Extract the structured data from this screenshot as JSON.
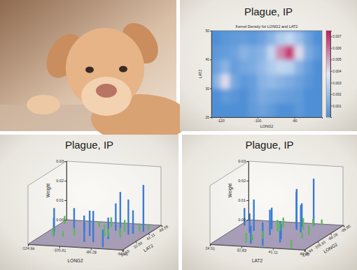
{
  "chart_data": [
    {
      "type": "heatmap",
      "title": "Plague, IP",
      "subtitle": "Kernel Density for LONG2 and LAT2",
      "xlabel": "LONG2",
      "ylabel": "LAT2",
      "x": [
        -122.5,
        -117.5,
        -112.5,
        -107.5,
        -102.5,
        -97.5,
        -92.5,
        -87.5,
        -82.5,
        -77.5,
        -72.5,
        -67.5
      ],
      "y": [
        22.5,
        27.5,
        32.5,
        37.5,
        42.5,
        47.5
      ],
      "cells": [
        [
          0,
          0,
          0,
          0,
          0.0005,
          0.0008,
          0.0005,
          0,
          0,
          0.0004,
          0,
          0
        ],
        [
          0,
          0.0005,
          0.0003,
          0,
          0.0006,
          0.0012,
          0.001,
          0.0008,
          0.0006,
          0.0005,
          0,
          0
        ],
        [
          0.0015,
          0.004,
          0.001,
          0.0004,
          0.0006,
          0.0015,
          0.0018,
          0.0015,
          0.0012,
          0.0008,
          0.0003,
          0
        ],
        [
          0.0008,
          0.0015,
          0.0006,
          0.001,
          0.0012,
          0.0018,
          0.0025,
          0.003,
          0.0028,
          0.0015,
          0.0006,
          0
        ],
        [
          0.0004,
          0.0006,
          0.0008,
          0.0015,
          0.0012,
          0.0015,
          0.003,
          0.0055,
          0.007,
          0.004,
          0.0012,
          0.0004
        ],
        [
          0,
          0.0003,
          0.0005,
          0.0006,
          0.0004,
          0.0008,
          0.0015,
          0.0025,
          0.003,
          0.002,
          0.0008,
          0
        ]
      ],
      "xlim": [
        -125,
        -65
      ],
      "xticks": [
        -120,
        -100,
        -80
      ],
      "ylim": [
        20,
        50
      ],
      "yticks": [
        20,
        30,
        40,
        50
      ],
      "colorbar_lim": [
        0,
        0.0075
      ],
      "colorbar_ticks": [
        0.001,
        0.002,
        0.003,
        0.004,
        0.005,
        0.006,
        0.007
      ]
    },
    {
      "type": "bar3d",
      "title": "Plague, IP",
      "xlabel": "LONG2",
      "zlabel": "LAT2",
      "ylabel": "Weight",
      "xlim": [
        -124.94,
        -66.95
      ],
      "xticks": [
        -124.94,
        -105.61,
        -86.28,
        -66.95
      ],
      "zlim": [
        24.55,
        49.38
      ],
      "zticks": [
        24.55,
        32.83,
        41.11,
        49.38
      ],
      "ylim": [
        0,
        0.03
      ],
      "yticks": [
        {
          "value": 0,
          "label": "0.00"
        },
        0.01,
        0.02,
        0.03
      ],
      "series": [
        {
          "color": "#3a7bd5",
          "x": [
            -121.5,
            -118.2,
            -112,
            -104.9,
            -97.5,
            -95.4,
            -90.1,
            -87.6,
            -84.4,
            -83,
            -80.2,
            -77,
            -75.2,
            -71.1
          ],
          "z": [
            37.8,
            34.1,
            40.7,
            39.7,
            35.5,
            29.8,
            30,
            41.9,
            33.7,
            40,
            25.8,
            38.9,
            40,
            42.4
          ],
          "values": [
            0.012,
            0.009,
            0.011,
            0.008,
            0.013,
            0.01,
            0.016,
            0.014,
            0.011,
            0.021,
            0.009,
            0.018,
            0.012,
            0.024
          ]
        },
        {
          "color": "#5cb85c",
          "x": [
            -122.4,
            -117.2,
            -111.9,
            -106.6,
            -100,
            -93.3,
            -89,
            -86.8,
            -81.7,
            -79,
            -73.8,
            -69.8
          ],
          "z": [
            45.5,
            32.7,
            33.4,
            35.1,
            44.4,
            45,
            36,
            36.2,
            41.5,
            35.8,
            42.7,
            44.3
          ],
          "values": [
            0.004,
            0.005,
            0.003,
            0.004,
            0.003,
            0.005,
            0.006,
            0.004,
            0.006,
            0.005,
            0.004,
            0.003
          ]
        }
      ]
    },
    {
      "type": "bar3d",
      "title": "Plague, IP",
      "xlabel": "LAT2",
      "zlabel": "LONG2",
      "ylabel": "Weight",
      "xlim": [
        24.55,
        49.38
      ],
      "xticks": [
        24.55,
        32.83,
        41.11,
        49.38
      ],
      "zlim": [
        -124.94,
        -66.95
      ],
      "zticks": [
        -124.94,
        -105.61,
        -86.28,
        -66.95
      ],
      "ylim": [
        0,
        0.03
      ],
      "yticks": [
        {
          "value": 0,
          "label": "0.00"
        },
        0.01,
        0.02,
        0.03
      ],
      "series": [
        {
          "color": "#3a7bd5",
          "x": [
            37.8,
            34.1,
            40.7,
            39.7,
            35.5,
            29.8,
            30,
            41.9,
            33.7,
            40,
            25.8,
            38.9,
            40,
            42.4
          ],
          "z": [
            -121.5,
            -118.2,
            -112,
            -104.9,
            -97.5,
            -95.4,
            -90.1,
            -87.6,
            -84.4,
            -83,
            -80.2,
            -77,
            -75.2,
            -71.1
          ],
          "values": [
            0.012,
            0.009,
            0.011,
            0.008,
            0.013,
            0.01,
            0.016,
            0.014,
            0.011,
            0.021,
            0.009,
            0.018,
            0.012,
            0.024
          ]
        },
        {
          "color": "#5cb85c",
          "x": [
            45.5,
            32.7,
            33.4,
            35.1,
            44.4,
            45,
            36,
            36.2,
            41.5,
            35.8,
            42.7,
            44.3
          ],
          "z": [
            -122.4,
            -117.2,
            -111.9,
            -106.6,
            -100,
            -93.3,
            -89,
            -86.8,
            -81.7,
            -79,
            -73.8,
            -69.8
          ],
          "values": [
            0.004,
            0.005,
            0.003,
            0.004,
            0.003,
            0.005,
            0.006,
            0.004,
            0.006,
            0.005,
            0.004,
            0.003
          ]
        }
      ]
    }
  ]
}
